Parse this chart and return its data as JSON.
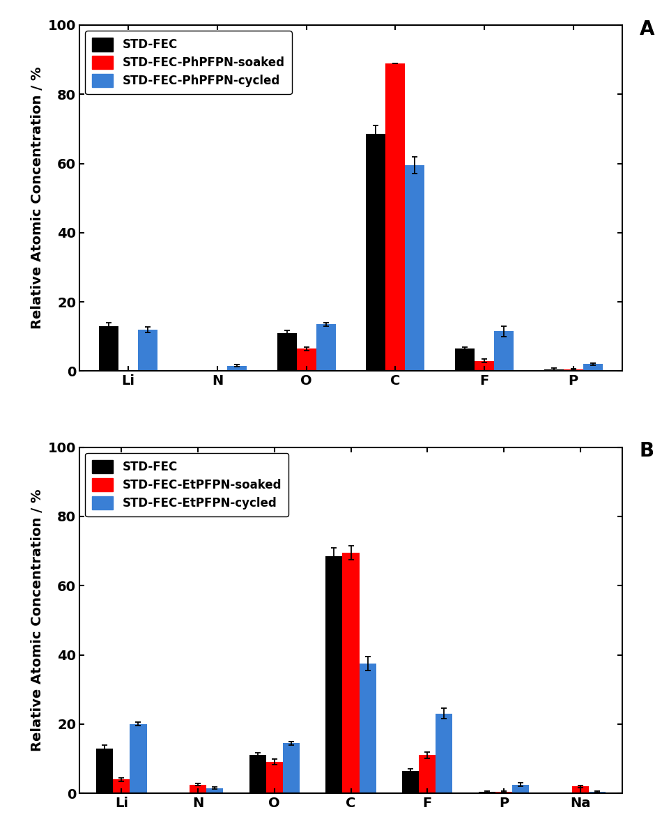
{
  "panel_A": {
    "title_label": "A",
    "legend_labels": [
      "STD-FEC",
      "STD-FEC-PhPFPN-soaked",
      "STD-FEC-PhPFPN-cycled"
    ],
    "colors": [
      "#000000",
      "#ff0000",
      "#3a7fd5"
    ],
    "categories": [
      "Li",
      "N",
      "O",
      "C",
      "F",
      "P"
    ],
    "values": {
      "black": [
        13.0,
        0.0,
        11.0,
        68.5,
        6.5,
        0.5
      ],
      "red": [
        0.0,
        0.0,
        6.5,
        89.0,
        3.0,
        0.5
      ],
      "blue": [
        12.0,
        1.5,
        13.5,
        59.5,
        11.5,
        2.0
      ]
    },
    "errors": {
      "black": [
        1.0,
        0.0,
        0.8,
        2.5,
        0.5,
        0.3
      ],
      "red": [
        0.0,
        0.0,
        0.5,
        0.0,
        0.5,
        0.2
      ],
      "blue": [
        0.8,
        0.3,
        0.5,
        2.5,
        1.5,
        0.3
      ]
    }
  },
  "panel_B": {
    "title_label": "B",
    "legend_labels": [
      "STD-FEC",
      "STD-FEC-EtPFPN-soaked",
      "STD-FEC-EtPFPN-cycled"
    ],
    "colors": [
      "#000000",
      "#ff0000",
      "#3a7fd5"
    ],
    "categories": [
      "Li",
      "N",
      "O",
      "C",
      "F",
      "P",
      "Na"
    ],
    "values": {
      "black": [
        13.0,
        0.0,
        11.0,
        68.5,
        6.5,
        0.5,
        0.0
      ],
      "red": [
        4.0,
        2.5,
        9.0,
        69.5,
        11.0,
        0.5,
        2.0
      ],
      "blue": [
        20.0,
        1.5,
        14.5,
        37.5,
        23.0,
        2.5,
        0.5
      ]
    },
    "errors": {
      "black": [
        1.0,
        0.0,
        0.8,
        2.5,
        0.5,
        0.2,
        0.0
      ],
      "red": [
        0.5,
        0.3,
        0.8,
        2.0,
        1.0,
        0.2,
        0.3
      ],
      "blue": [
        0.5,
        0.3,
        0.5,
        2.0,
        1.5,
        0.5,
        0.2
      ]
    }
  },
  "ylabel": "Relative Atomic Concentration / %",
  "ylim": [
    0,
    100
  ],
  "yticks": [
    0,
    20,
    40,
    60,
    80,
    100
  ],
  "bar_width": 0.22,
  "background_color": "#ffffff",
  "axis_color": "#000000",
  "tick_fontsize": 14,
  "label_fontsize": 14,
  "legend_fontsize": 12,
  "panel_label_fontsize": 20
}
